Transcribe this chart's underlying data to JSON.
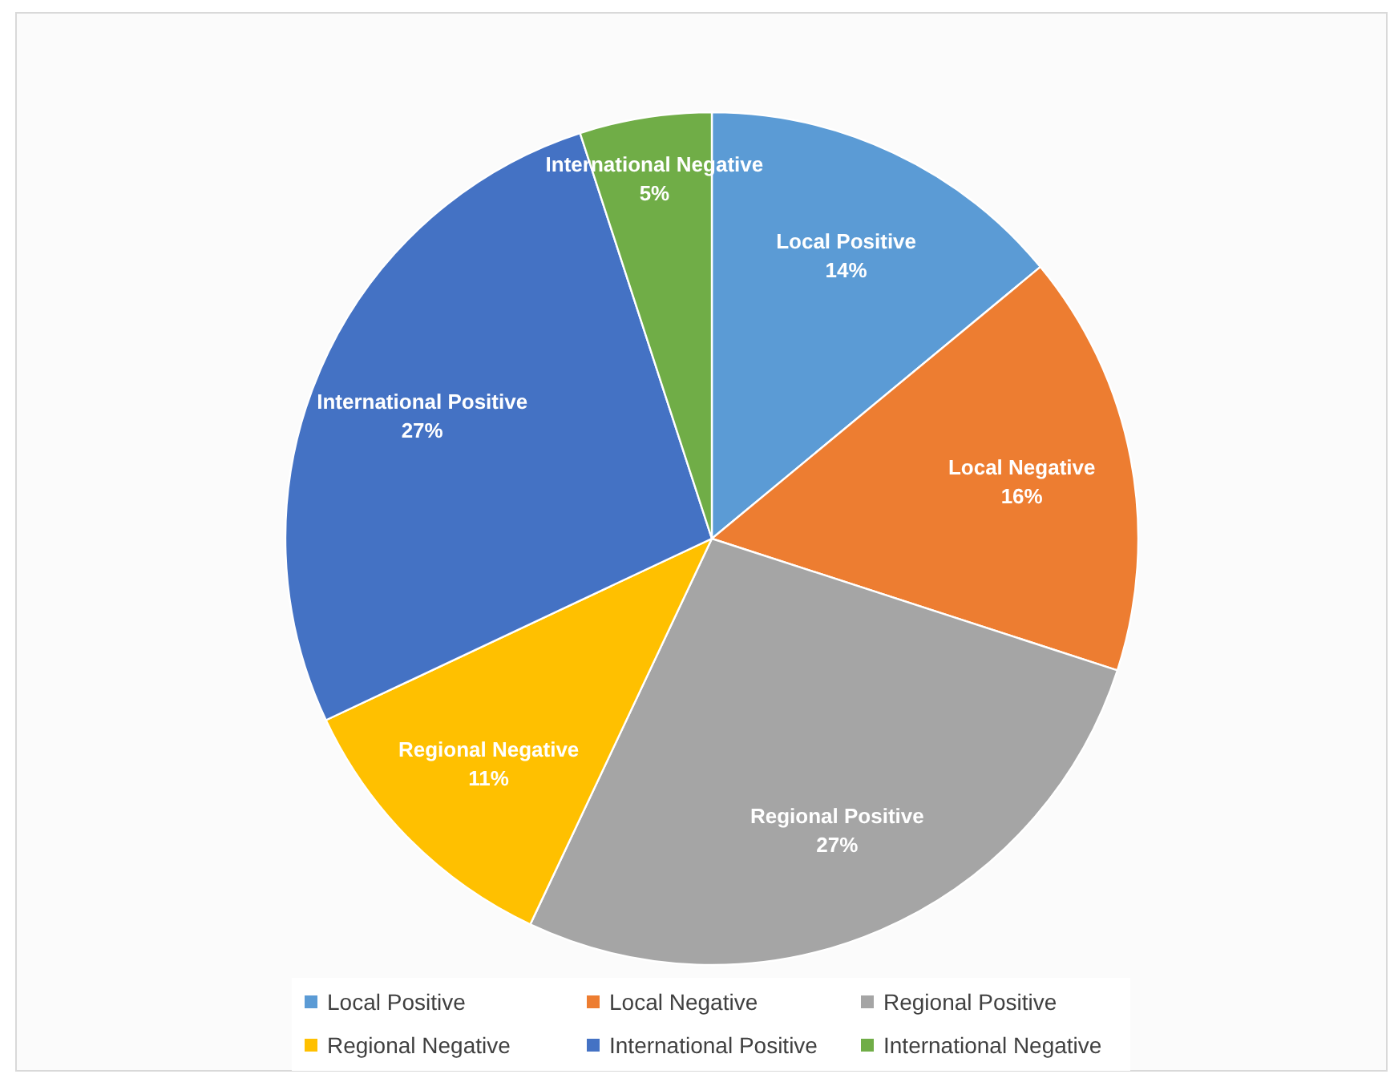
{
  "chart_data": {
    "type": "pie",
    "categories": [
      "Local Positive",
      "Local Negative",
      "Regional Positive",
      "Regional Negative",
      "International Positive",
      "International Negative"
    ],
    "values": [
      14,
      16,
      27,
      11,
      27,
      5
    ],
    "value_labels": [
      "14%",
      "16%",
      "27%",
      "11%",
      "27%",
      "5%"
    ],
    "colors": [
      "#5b9bd5",
      "#ed7d31",
      "#a5a5a5",
      "#ffc000",
      "#4472c4",
      "#70ad47"
    ],
    "legend": "bottom"
  }
}
